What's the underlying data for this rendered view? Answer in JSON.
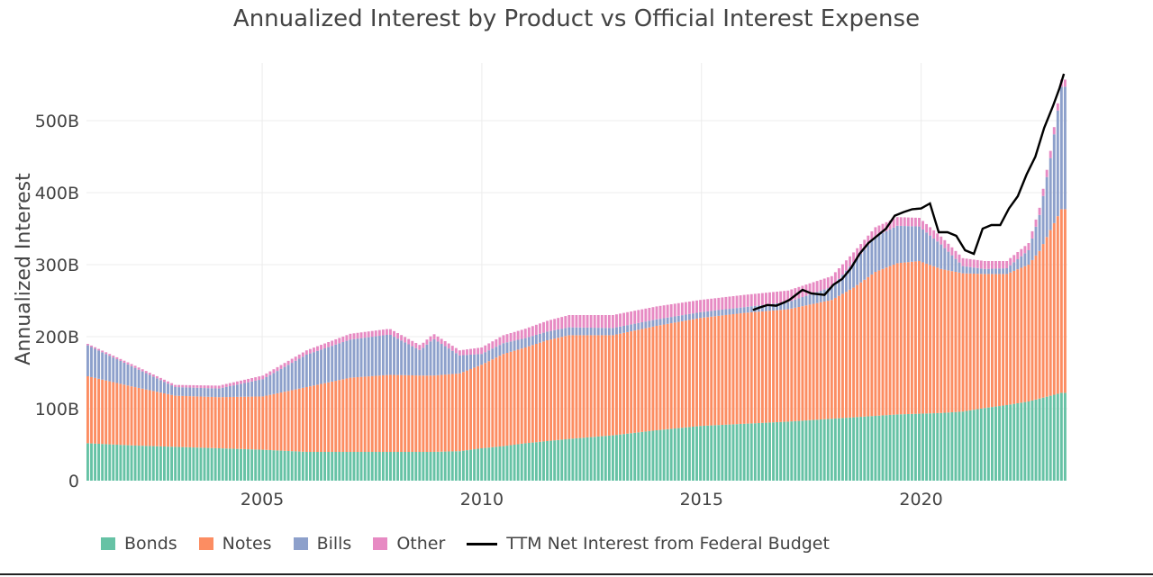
{
  "title": "Annualized Interest by Product vs Official Interest Expense",
  "colors": {
    "bonds": "#66c2a5",
    "notes": "#fc8d62",
    "bills": "#8da0cb",
    "other": "#e78ac3",
    "line": "#000000"
  },
  "chart_data": {
    "type": "bar",
    "stacked": true,
    "title": "Annualized Interest by Product vs Official Interest Expense",
    "xlabel": "",
    "ylabel": "Annualized Interest",
    "xlim": [
      2001.0,
      2023.33
    ],
    "ylim": [
      0,
      580
    ],
    "x_ticks": [
      "2005",
      "2010",
      "2015",
      "2020"
    ],
    "y_ticks": [
      "0",
      "100B",
      "200B",
      "300B",
      "400B",
      "500B"
    ],
    "grid": true,
    "legend_position": "bottom",
    "legend": [
      "Bonds",
      "Notes",
      "Bills",
      "Other",
      "TTM Net Interest from Federal Budget"
    ],
    "bar_keyframes": {
      "x": [
        2001.0,
        2002.0,
        2003.0,
        2004.0,
        2005.0,
        2006.0,
        2007.0,
        2007.9,
        2008.6,
        2008.9,
        2009.5,
        2010.0,
        2010.5,
        2011.0,
        2011.5,
        2012.0,
        2013.0,
        2014.0,
        2015.0,
        2016.0,
        2017.0,
        2018.0,
        2018.5,
        2019.0,
        2019.5,
        2020.0,
        2020.5,
        2021.0,
        2021.5,
        2022.0,
        2022.5,
        2022.75,
        2023.0,
        2023.25
      ],
      "bonds": [
        52,
        49,
        47,
        45,
        43,
        40,
        40,
        40,
        40,
        40,
        41,
        45,
        48,
        52,
        55,
        58,
        63,
        70,
        76,
        79,
        82,
        86,
        88,
        90,
        92,
        93,
        94,
        96,
        101,
        105,
        110,
        114,
        118,
        122
      ],
      "notes": [
        93,
        82,
        71,
        71,
        74,
        90,
        103,
        107,
        106,
        106,
        108,
        116,
        128,
        133,
        140,
        144,
        139,
        145,
        150,
        154,
        156,
        165,
        180,
        200,
        210,
        212,
        200,
        192,
        186,
        182,
        190,
        205,
        230,
        255
      ],
      "bills": [
        43,
        28,
        12,
        12,
        24,
        45,
        53,
        56,
        35,
        51,
        25,
        15,
        15,
        13,
        12,
        11,
        10,
        9,
        8,
        8,
        10,
        18,
        35,
        49,
        52,
        48,
        34,
        10,
        7,
        8,
        20,
        50,
        100,
        170
      ],
      "other": [
        2,
        3,
        3,
        4,
        5,
        6,
        8,
        8,
        7,
        7,
        7,
        9,
        11,
        13,
        15,
        17,
        18,
        18,
        17,
        17,
        16,
        15,
        14,
        13,
        12,
        12,
        11,
        11,
        11,
        10,
        10,
        10,
        10,
        10
      ]
    },
    "line": {
      "name": "TTM Net Interest from Federal Budget",
      "x": [
        2016.17,
        2016.3,
        2016.5,
        2016.7,
        2016.9,
        2017.0,
        2017.3,
        2017.5,
        2017.8,
        2018.0,
        2018.2,
        2018.4,
        2018.6,
        2018.8,
        2019.0,
        2019.2,
        2019.4,
        2019.6,
        2019.8,
        2020.0,
        2020.2,
        2020.4,
        2020.6,
        2020.8,
        2021.0,
        2021.2,
        2021.4,
        2021.6,
        2021.8,
        2022.0,
        2022.2,
        2022.4,
        2022.6,
        2022.8,
        2023.0,
        2023.15,
        2023.25
      ],
      "y": [
        237,
        240,
        244,
        243,
        248,
        251,
        265,
        260,
        258,
        272,
        280,
        295,
        315,
        330,
        340,
        350,
        368,
        373,
        377,
        378,
        385,
        345,
        345,
        340,
        320,
        315,
        350,
        355,
        355,
        378,
        395,
        425,
        450,
        490,
        520,
        545,
        565
      ]
    }
  }
}
